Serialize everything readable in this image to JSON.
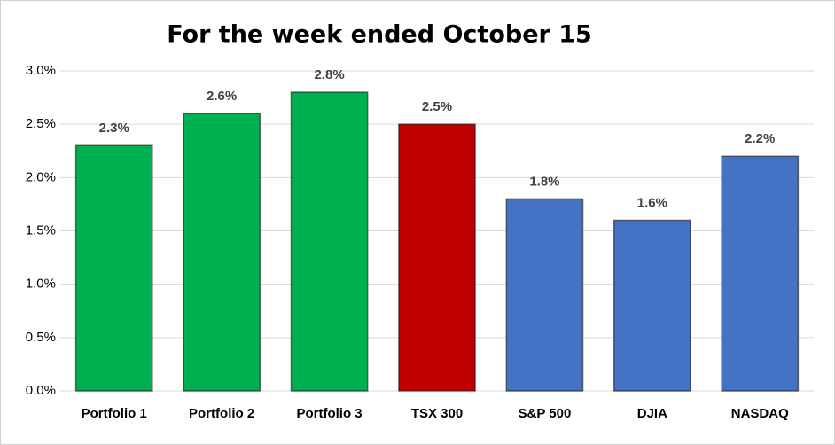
{
  "chart_data": {
    "type": "bar",
    "title": "For the week ended October 15",
    "categories": [
      "Portfolio 1",
      "Portfolio 2",
      "Portfolio 3",
      "TSX 300",
      "S&P 500",
      "DJIA",
      "NASDAQ"
    ],
    "values": [
      2.3,
      2.6,
      2.8,
      2.5,
      1.8,
      1.6,
      2.2
    ],
    "value_labels": [
      "2.3%",
      "2.6%",
      "2.8%",
      "2.5%",
      "1.8%",
      "1.6%",
      "2.2%"
    ],
    "colors": [
      "#00b050",
      "#00b050",
      "#00b050",
      "#c00000",
      "#4472c4",
      "#4472c4",
      "#4472c4"
    ],
    "ylim": [
      0,
      3
    ],
    "yticks": [
      {
        "value": 0,
        "label": "0.0%"
      },
      {
        "value": 0.5,
        "label": "0.5%"
      },
      {
        "value": 1,
        "label": "1.0%"
      },
      {
        "value": 1.5,
        "label": "1.5%"
      },
      {
        "value": 2,
        "label": "2.0%"
      },
      {
        "value": 2.5,
        "label": "2.5%"
      },
      {
        "value": 3,
        "label": "3.0%"
      }
    ],
    "grid": true
  }
}
